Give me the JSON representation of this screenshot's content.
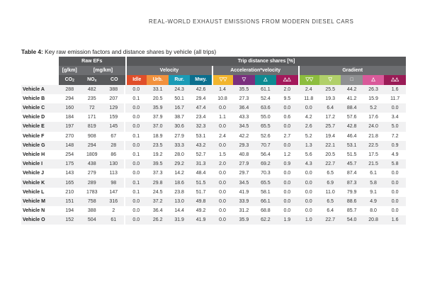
{
  "running_head": "REAL-WORLD EXHAUST EMISSIONS FROM MODERN DIESEL CARS",
  "caption": {
    "label": "Table 4:",
    "text": "Key raw emission factors and distance shares by vehicle (all trips)"
  },
  "header": {
    "raw_efs": "Raw EFs",
    "trip_shares": "Trip distance shares [%]",
    "unit_gkm": "[g/km]",
    "unit_mgkm": "[mg/km]",
    "velocity": "Velocity",
    "accel_velocity": "Acceleration*velocity",
    "gradient": "Gradient",
    "co2": "CO",
    "co2_sub": "2",
    "nox": "NO",
    "nox_sub": "x",
    "co": "CO",
    "idle": "Idle",
    "urb": "Urb.",
    "rur": "Rur.",
    "mwy": "Mwy.",
    "icons": {
      "a1": "▽▽",
      "a2": "▽",
      "a3": "△",
      "a4": "△△",
      "g1": "▽▽",
      "g2": "▽",
      "g3": "□",
      "g4": "△",
      "g5": "△△"
    }
  },
  "rows": [
    {
      "label": "Vehicle A",
      "v": [
        "288",
        "482",
        "388",
        "0.0",
        "33.1",
        "24.3",
        "42.6",
        "1.4",
        "35.5",
        "61.1",
        "2.0",
        "2.4",
        "25.5",
        "44.2",
        "26.3",
        "1.6"
      ]
    },
    {
      "label": "Vehicle B",
      "v": [
        "294",
        "235",
        "207",
        "0.1",
        "20.5",
        "50.1",
        "29.4",
        "10.8",
        "27.3",
        "52.4",
        "9.5",
        "11.8",
        "19.3",
        "41.2",
        "15.9",
        "11.7"
      ]
    },
    {
      "label": "Vehicle C",
      "v": [
        "160",
        "72",
        "129",
        "0.0",
        "35.9",
        "16.7",
        "47.4",
        "0.0",
        "36.4",
        "63.6",
        "0.0",
        "0.0",
        "6.4",
        "88.4",
        "5.2",
        "0.0"
      ]
    },
    {
      "label": "Vehicle D",
      "v": [
        "184",
        "171",
        "159",
        "0.0",
        "37.9",
        "38.7",
        "23.4",
        "1.1",
        "43.3",
        "55.0",
        "0.6",
        "4.2",
        "17.2",
        "57.6",
        "17.6",
        "3.4"
      ]
    },
    {
      "label": "Vehicle E",
      "v": [
        "197",
        "819",
        "145",
        "0.0",
        "37.0",
        "30.6",
        "32.3",
        "0.0",
        "34.5",
        "65.5",
        "0.0",
        "2.6",
        "25.7",
        "42.8",
        "24.0",
        "5.0"
      ]
    },
    {
      "label": "Vehicle F",
      "v": [
        "270",
        "908",
        "67",
        "0.1",
        "18.9",
        "27.9",
        "53.1",
        "2.4",
        "42.2",
        "52.6",
        "2.7",
        "5.2",
        "19.4",
        "46.4",
        "21.8",
        "7.2"
      ]
    },
    {
      "label": "Vehicle G",
      "v": [
        "148",
        "294",
        "28",
        "0.0",
        "23.5",
        "33.3",
        "43.2",
        "0.0",
        "29.3",
        "70.7",
        "0.0",
        "1.3",
        "22.1",
        "53.1",
        "22.5",
        "0.9"
      ]
    },
    {
      "label": "Vehicle H",
      "v": [
        "254",
        "1809",
        "86",
        "0.1",
        "19.2",
        "28.0",
        "52.7",
        "1.5",
        "40.8",
        "56.4",
        "1.2",
        "5.6",
        "20.5",
        "51.5",
        "17.5",
        "4.9"
      ]
    },
    {
      "label": "Vehicle I",
      "v": [
        "175",
        "438",
        "130",
        "0.0",
        "39.5",
        "29.2",
        "31.3",
        "2.0",
        "27.9",
        "69.2",
        "0.9",
        "4.3",
        "22.7",
        "45.7",
        "21.5",
        "5.8"
      ]
    },
    {
      "label": "Vehicle J",
      "v": [
        "143",
        "279",
        "113",
        "0.0",
        "37.3",
        "14.2",
        "48.4",
        "0.0",
        "29.7",
        "70.3",
        "0.0",
        "0.0",
        "6.5",
        "87.4",
        "6.1",
        "0.0"
      ]
    },
    {
      "label": "Vehicle K",
      "v": [
        "165",
        "289",
        "98",
        "0.1",
        "29.8",
        "18.6",
        "51.5",
        "0.0",
        "34.5",
        "65.5",
        "0.0",
        "0.0",
        "6.9",
        "87.3",
        "5.8",
        "0.0"
      ]
    },
    {
      "label": "Vehicle L",
      "v": [
        "210",
        "1783",
        "147",
        "0.1",
        "24.5",
        "23.8",
        "51.7",
        "0.0",
        "41.9",
        "58.1",
        "0.0",
        "0.0",
        "11.0",
        "79.9",
        "9.1",
        "0.0"
      ]
    },
    {
      "label": "Vehicle M",
      "v": [
        "151",
        "758",
        "316",
        "0.0",
        "37.2",
        "13.0",
        "49.8",
        "0.0",
        "33.9",
        "66.1",
        "0.0",
        "0.0",
        "6.5",
        "88.6",
        "4.9",
        "0.0"
      ]
    },
    {
      "label": "Vehicle N",
      "v": [
        "194",
        "388",
        "2",
        "0.0",
        "36.4",
        "14.4",
        "49.2",
        "0.0",
        "31.2",
        "68.8",
        "0.0",
        "0.0",
        "6.4",
        "85.7",
        "8.0",
        "0.0"
      ]
    },
    {
      "label": "Vehicle O",
      "v": [
        "152",
        "504",
        "61",
        "0.0",
        "26.2",
        "31.9",
        "41.9",
        "0.0",
        "35.9",
        "62.2",
        "1.9",
        "1.0",
        "22.7",
        "54.0",
        "20.8",
        "1.6"
      ]
    }
  ],
  "colors": {
    "header_dark": "#58595b",
    "idle": "#e04e2a",
    "urban": "#f2913d",
    "rural": "#1a9bb6",
    "motorway": "#0b6f8e"
  }
}
